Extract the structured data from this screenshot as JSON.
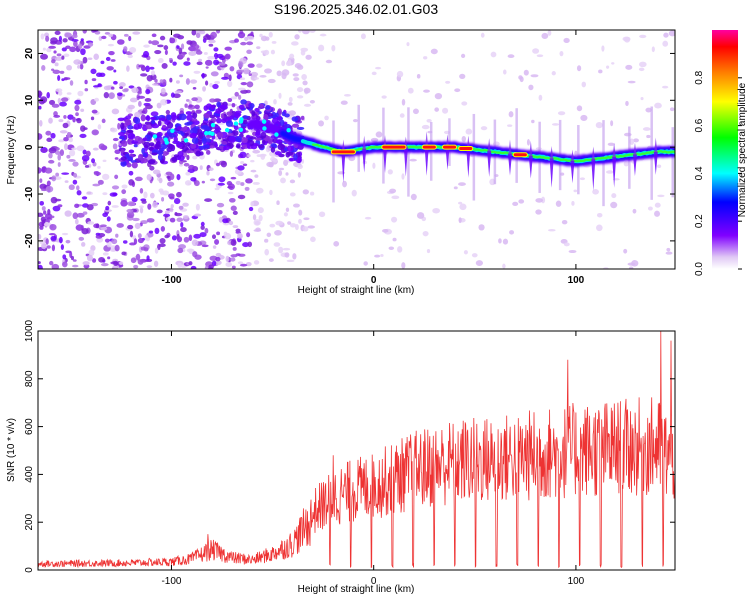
{
  "title": "S196.2025.346.02.01.G03",
  "chart_data": [
    {
      "type": "heatmap",
      "xlabel": "Height of straight line (km)",
      "ylabel": "Frequency (Hz)",
      "xlim": [
        -166,
        149
      ],
      "ylim": [
        -26,
        25
      ],
      "x_ticks": [
        -100,
        0,
        100
      ],
      "y_ticks": [
        -20,
        -10,
        0,
        10,
        20
      ],
      "colorbar": {
        "label": "Normalized spectral amplitude",
        "range": [
          0,
          1
        ],
        "ticks": [
          0.0,
          0.2,
          0.4,
          0.6,
          0.8
        ]
      },
      "ridge": {
        "description_points": [
          [
            -120,
            1
          ],
          [
            -100,
            2
          ],
          [
            -80,
            4
          ],
          [
            -60,
            5
          ],
          [
            -50,
            4
          ],
          [
            -40,
            2
          ],
          [
            -25,
            0
          ],
          [
            -15,
            -1
          ],
          [
            0,
            0
          ],
          [
            20,
            0
          ],
          [
            40,
            0
          ],
          [
            60,
            -1
          ],
          [
            80,
            -2
          ],
          [
            100,
            -3
          ],
          [
            120,
            -2
          ],
          [
            140,
            -1
          ]
        ]
      },
      "peak_segments": [
        [
          -20,
          -10
        ],
        [
          5,
          15
        ],
        [
          25,
          30
        ],
        [
          35,
          40
        ],
        [
          43,
          48
        ],
        [
          70,
          75
        ]
      ]
    },
    {
      "type": "line",
      "xlabel": "Height of straight line (km)",
      "ylabel": "SNR (10 * v/v)",
      "xlim": [
        -166,
        149
      ],
      "ylim": [
        0,
        1000
      ],
      "x_ticks": [
        -100,
        0,
        100
      ],
      "y_ticks": [
        0,
        200,
        400,
        600,
        800,
        1000
      ],
      "color": "#ee3333",
      "envelope": {
        "x": [
          -166,
          -120,
          -100,
          -90,
          -80,
          -70,
          -60,
          -50,
          -40,
          -30,
          -20,
          -10,
          0,
          20,
          40,
          60,
          80,
          100,
          120,
          140,
          149
        ],
        "y": [
          30,
          35,
          40,
          55,
          100,
          60,
          50,
          80,
          130,
          260,
          330,
          360,
          380,
          450,
          490,
          500,
          520,
          540,
          550,
          560,
          500
        ]
      },
      "annotated_peaks": [
        [
          -82,
          150
        ],
        [
          -20,
          480
        ],
        [
          96,
          880
        ],
        [
          142,
          1000
        ],
        [
          147,
          960
        ]
      ]
    }
  ]
}
